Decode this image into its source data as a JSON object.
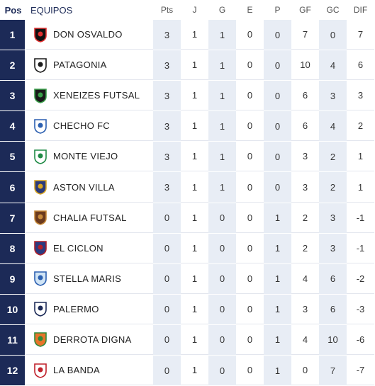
{
  "header": {
    "pos": "Pos",
    "team": "EQUIPOS",
    "cols": [
      "Pts",
      "J",
      "G",
      "E",
      "P",
      "GF",
      "GC",
      "DIF"
    ]
  },
  "rows": [
    {
      "pos": "1",
      "team": "DON OSVALDO",
      "icon": "fs-crest-icon",
      "stats": [
        "3",
        "1",
        "1",
        "0",
        "0",
        "7",
        "0",
        "7"
      ]
    },
    {
      "pos": "2",
      "team": "PATAGONIA",
      "icon": "patagonia-crest-icon",
      "stats": [
        "3",
        "1",
        "1",
        "0",
        "0",
        "10",
        "4",
        "6"
      ]
    },
    {
      "pos": "3",
      "team": "XENEIZES FUTSAL",
      "icon": "xeneizes-crest-icon",
      "stats": [
        "3",
        "1",
        "1",
        "0",
        "0",
        "6",
        "3",
        "3"
      ]
    },
    {
      "pos": "4",
      "team": "CHECHO FC",
      "icon": "checho-crest-icon",
      "stats": [
        "3",
        "1",
        "1",
        "0",
        "0",
        "6",
        "4",
        "2"
      ]
    },
    {
      "pos": "5",
      "team": "MONTE VIEJO",
      "icon": "monte-viejo-crest-icon",
      "stats": [
        "3",
        "1",
        "1",
        "0",
        "0",
        "3",
        "2",
        "1"
      ]
    },
    {
      "pos": "6",
      "team": "ASTON VILLA",
      "icon": "aston-villa-crest-icon",
      "stats": [
        "3",
        "1",
        "1",
        "0",
        "0",
        "3",
        "2",
        "1"
      ]
    },
    {
      "pos": "7",
      "team": "CHALIA FUTSAL",
      "icon": "chalia-crest-icon",
      "stats": [
        "0",
        "1",
        "0",
        "0",
        "1",
        "2",
        "3",
        "-1"
      ]
    },
    {
      "pos": "8",
      "team": "EL CICLON",
      "icon": "el-ciclon-crest-icon",
      "stats": [
        "0",
        "1",
        "0",
        "0",
        "1",
        "2",
        "3",
        "-1"
      ]
    },
    {
      "pos": "9",
      "team": "STELLA MARIS",
      "icon": "stella-maris-crest-icon",
      "stats": [
        "0",
        "1",
        "0",
        "0",
        "1",
        "4",
        "6",
        "-2"
      ]
    },
    {
      "pos": "10",
      "team": "PALERMO",
      "icon": "palermo-crest-icon",
      "stats": [
        "0",
        "1",
        "0",
        "0",
        "1",
        "3",
        "6",
        "-3"
      ]
    },
    {
      "pos": "11",
      "team": "DERROTA DIGNA",
      "icon": "derrota-digna-crest-icon",
      "stats": [
        "0",
        "1",
        "0",
        "0",
        "1",
        "4",
        "10",
        "-6"
      ]
    },
    {
      "pos": "12",
      "team": "LA BANDA",
      "icon": "la-banda-crest-icon",
      "stats": [
        "0",
        "1",
        "0",
        "0",
        "1",
        "0",
        "7",
        "-7"
      ]
    }
  ],
  "colors": {
    "pos_bg": "#1c2a57",
    "shade": "#e8edf5"
  }
}
